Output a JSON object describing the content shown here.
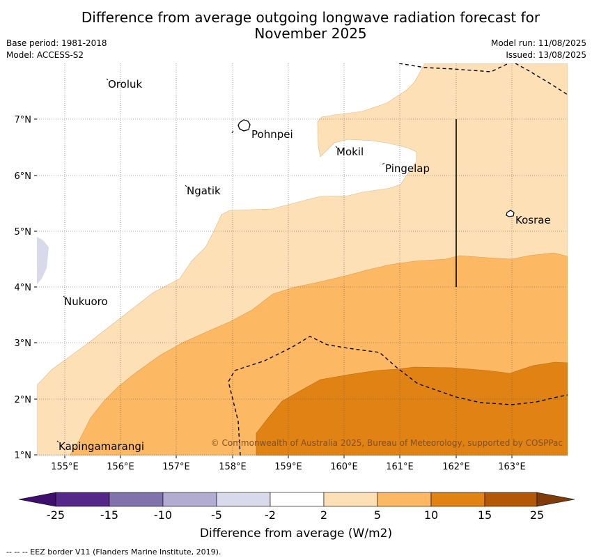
{
  "title": {
    "line1": "Difference from average outgoing longwave radiation forecast for",
    "line2": "November 2025"
  },
  "meta": {
    "base_period": "Base period: 1981-2018",
    "model": "Model: ACCESS-S2",
    "model_run": "Model run: 11/08/2025",
    "issued": "Issued: 13/08/2025"
  },
  "axes": {
    "lat_labels": [
      "1°N",
      "2°N",
      "3°N",
      "4°N",
      "5°N",
      "6°N",
      "7°N"
    ],
    "lon_labels": [
      "155°E",
      "156°E",
      "157°E",
      "158°E",
      "159°E",
      "160°E",
      "161°E",
      "162°E",
      "163°E"
    ]
  },
  "places": {
    "oroluk": "Oroluk",
    "pohnpei": "Pohnpei",
    "mokil": "Mokil",
    "pingelap": "Pingelap",
    "ngatik": "Ngatik",
    "kosrae": "Kosrae",
    "nukuoro": "Nukuoro",
    "kapingamarangi": "Kapingamarangi"
  },
  "copyright": "© Commonwealth of Australia 2025, Bureau of Meteorology, supported by COSPPac",
  "colorbar": {
    "title": "Difference from average (W/m2)",
    "ticks": [
      "-25",
      "-15",
      "-10",
      "-5",
      "-2",
      "2",
      "5",
      "10",
      "15",
      "25"
    ],
    "colors": [
      "#3f0f6e",
      "#542788",
      "#8073ac",
      "#b2abd2",
      "#d8daeb",
      "#ffffff",
      "#fee0b6",
      "#fdb863",
      "#e08214",
      "#b35806",
      "#7f3b08"
    ]
  },
  "footer": "--  --  -- EEZ border V11 (Flanders Marine Institute, 2019)."
}
